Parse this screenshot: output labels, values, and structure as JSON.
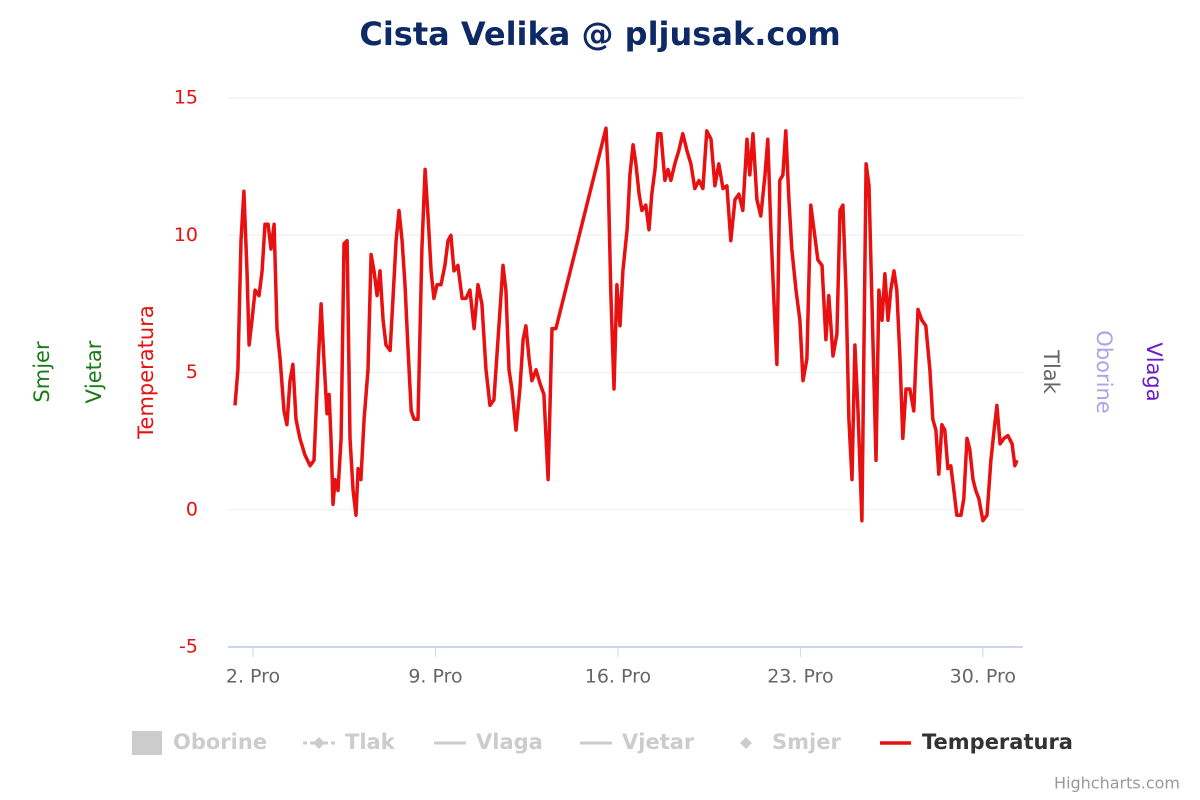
{
  "chart_data": {
    "type": "line",
    "title": "Cista Velika @ pljusak.com",
    "x": [
      1.31,
      1.42,
      1.54,
      1.65,
      1.77,
      1.85,
      1.96,
      2.08,
      2.23,
      2.35,
      2.46,
      2.58,
      2.69,
      2.81,
      2.92,
      3.04,
      3.19,
      3.3,
      3.42,
      3.53,
      3.65,
      3.8,
      3.99,
      4.19,
      4.34,
      4.49,
      4.61,
      4.72,
      4.84,
      4.92,
      4.99,
      5.07,
      5.15,
      5.26,
      5.38,
      5.49,
      5.61,
      5.72,
      5.84,
      5.95,
      6.03,
      6.14,
      6.26,
      6.41,
      6.53,
      6.64,
      6.76,
      6.87,
      6.99,
      7.1,
      7.26,
      7.37,
      7.49,
      7.6,
      7.72,
      7.83,
      7.95,
      8.07,
      8.18,
      8.33,
      8.48,
      8.6,
      8.72,
      8.83,
      8.94,
      9.06,
      9.21,
      9.36,
      9.48,
      9.59,
      9.71,
      9.86,
      10.02,
      10.17,
      10.32,
      10.48,
      10.63,
      10.78,
      10.94,
      11.09,
      11.24,
      11.4,
      11.59,
      11.7,
      11.82,
      11.93,
      12.09,
      12.24,
      12.36,
      12.47,
      12.59,
      12.7,
      12.86,
      13.01,
      13.16,
      13.32,
      13.47,
      13.62,
      15.54,
      15.62,
      15.73,
      15.85,
      15.96,
      16.08,
      16.19,
      16.35,
      16.46,
      16.58,
      16.69,
      16.81,
      16.92,
      17.07,
      17.19,
      17.3,
      17.42,
      17.53,
      17.65,
      17.8,
      17.92,
      18.03,
      18.18,
      18.34,
      18.49,
      18.64,
      18.8,
      18.95,
      19.11,
      19.26,
      19.41,
      19.57,
      19.72,
      19.87,
      20.03,
      20.18,
      20.33,
      20.49,
      20.64,
      20.79,
      20.95,
      21.06,
      21.18,
      21.33,
      21.48,
      21.64,
      21.75,
      21.87,
      21.98,
      22.1,
      22.21,
      22.33,
      22.44,
      22.56,
      22.67,
      22.83,
      22.98,
      23.1,
      23.25,
      23.4,
      23.52,
      23.67,
      23.83,
      23.98,
      24.09,
      24.25,
      24.4,
      24.52,
      24.63,
      24.75,
      24.86,
      24.98,
      25.09,
      25.21,
      25.36,
      25.52,
      25.63,
      25.78,
      25.9,
      26.01,
      26.13,
      26.24,
      26.36,
      26.47,
      26.59,
      26.7,
      26.82,
      26.93,
      27.05,
      27.2,
      27.35,
      27.51,
      27.66,
      27.81,
      27.97,
      28.08,
      28.2,
      28.31,
      28.43,
      28.54,
      28.66,
      28.77,
      28.89,
      29.0,
      29.16,
      29.27,
      29.39,
      29.5,
      29.62,
      29.73,
      29.85,
      30.0,
      30.16,
      30.31,
      30.43,
      30.54,
      30.66,
      30.81,
      30.96,
      31.12,
      31.23,
      31.31
    ],
    "series": [
      {
        "name": "Temperatura",
        "color": "#e81010",
        "values": [
          3.8,
          5.1,
          9.8,
          11.6,
          8.7,
          6.0,
          6.9,
          8.0,
          7.8,
          8.7,
          10.4,
          10.4,
          9.5,
          10.4,
          6.6,
          5.5,
          3.6,
          3.1,
          4.7,
          5.3,
          3.3,
          2.6,
          2.0,
          1.6,
          1.8,
          5.1,
          7.5,
          5.5,
          3.5,
          4.2,
          2.6,
          0.2,
          1.1,
          0.7,
          2.6,
          9.7,
          9.8,
          2.6,
          0.7,
          -0.2,
          1.5,
          1.1,
          3.3,
          5.1,
          9.3,
          8.7,
          7.8,
          8.7,
          6.9,
          6.0,
          5.8,
          7.7,
          9.8,
          10.9,
          9.8,
          8.2,
          5.8,
          3.6,
          3.3,
          3.3,
          9.5,
          12.4,
          10.6,
          8.7,
          7.7,
          8.2,
          8.2,
          8.9,
          9.8,
          10.0,
          8.7,
          8.9,
          7.7,
          7.7,
          8.0,
          6.6,
          8.2,
          7.5,
          5.1,
          3.8,
          4.0,
          6.2,
          8.9,
          8.0,
          5.1,
          4.4,
          2.9,
          4.4,
          6.2,
          6.7,
          5.5,
          4.7,
          5.1,
          4.6,
          4.2,
          1.1,
          6.6,
          6.6,
          13.9,
          12.4,
          7.8,
          4.4,
          8.2,
          6.7,
          8.7,
          10.2,
          12.2,
          13.3,
          12.6,
          11.5,
          10.9,
          11.1,
          10.2,
          11.5,
          12.4,
          13.7,
          13.7,
          12.0,
          12.4,
          12.0,
          12.6,
          13.1,
          13.7,
          13.1,
          12.6,
          11.7,
          12.0,
          11.7,
          13.8,
          13.5,
          11.8,
          12.6,
          11.7,
          11.8,
          9.8,
          11.3,
          11.5,
          10.9,
          13.5,
          12.2,
          13.7,
          11.3,
          10.7,
          12.2,
          13.5,
          10.2,
          7.7,
          5.3,
          12.0,
          12.2,
          13.8,
          11.3,
          9.5,
          8.0,
          6.9,
          4.7,
          5.5,
          11.1,
          10.2,
          9.1,
          8.9,
          6.2,
          7.8,
          5.6,
          6.4,
          10.9,
          11.1,
          8.0,
          3.3,
          1.1,
          6.0,
          3.6,
          -0.4,
          12.6,
          11.8,
          6.2,
          1.8,
          8.0,
          6.9,
          8.6,
          6.9,
          8.0,
          8.7,
          8.0,
          5.5,
          2.6,
          4.4,
          4.4,
          3.6,
          7.3,
          6.9,
          6.7,
          5.1,
          3.3,
          2.9,
          1.3,
          3.1,
          2.9,
          1.5,
          1.6,
          0.7,
          -0.2,
          -0.2,
          0.4,
          2.6,
          2.2,
          1.1,
          0.7,
          0.4,
          -0.4,
          -0.2,
          1.8,
          2.9,
          3.8,
          2.4,
          2.6,
          2.7,
          2.4,
          1.6,
          1.8
        ]
      }
    ],
    "xlim": [
      1.04,
      31.54
    ],
    "xticks": [
      {
        "value": 2,
        "label": "2. Pro"
      },
      {
        "value": 9,
        "label": "9. Pro"
      },
      {
        "value": 16,
        "label": "16. Pro"
      },
      {
        "value": 23,
        "label": "23. Pro"
      },
      {
        "value": 30,
        "label": "30. Pro"
      }
    ],
    "ylim": [
      -5,
      15
    ],
    "yticks": [
      -5,
      0,
      5,
      10,
      15
    ],
    "grid": true,
    "axis_titles_left": [
      {
        "text": "Smjer",
        "color": "#1a7a1a"
      },
      {
        "text": "Vjetar",
        "color": "#1a7a1a"
      },
      {
        "text": "Temperatura",
        "color": "#e81010"
      }
    ],
    "axis_titles_right": [
      {
        "text": "Tlak",
        "color": "#666666"
      },
      {
        "text": "Oborine",
        "color": "#a8a4ee"
      },
      {
        "text": "Vlaga",
        "color": "#6a1ec8"
      }
    ],
    "legend_hidden": [
      {
        "name": "Oborine",
        "symbol": "column"
      },
      {
        "name": "Tlak",
        "symbol": "dash-diamond"
      },
      {
        "name": "Vlaga",
        "symbol": "line"
      },
      {
        "name": "Vjetar",
        "symbol": "line"
      },
      {
        "name": "Smjer",
        "symbol": "diamond"
      }
    ],
    "credits": "Highcharts.com"
  }
}
